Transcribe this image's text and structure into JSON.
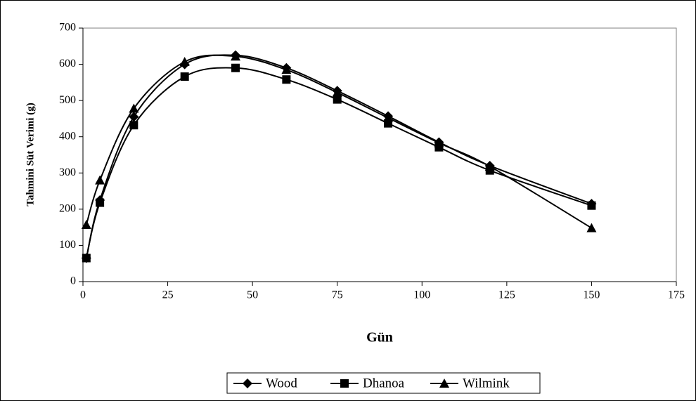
{
  "chart_data": {
    "type": "line",
    "x_label": "Gün",
    "y_label": "Tahmini Süt Verimi (g)",
    "x": [
      1,
      5,
      15,
      30,
      45,
      60,
      75,
      90,
      105,
      120,
      150
    ],
    "series": [
      {
        "name": "Wood",
        "color": "#000000",
        "marker": "diamond",
        "values": [
          65,
          225,
          455,
          600,
          625,
          590,
          527,
          457,
          385,
          320,
          215
        ]
      },
      {
        "name": "Dhanoa",
        "color": "#000000",
        "marker": "square",
        "values": [
          65,
          218,
          432,
          566,
          590,
          558,
          503,
          437,
          371,
          307,
          210
        ]
      },
      {
        "name": "Wilmink",
        "color": "#000000",
        "marker": "triangle",
        "values": [
          157,
          280,
          478,
          607,
          622,
          585,
          522,
          452,
          383,
          318,
          148
        ]
      }
    ],
    "xlim": [
      0,
      175
    ],
    "xticks": [
      0,
      25,
      50,
      75,
      100,
      125,
      150,
      175
    ],
    "ylim": [
      0,
      700
    ],
    "yticks": [
      0,
      100,
      200,
      300,
      400,
      500,
      600,
      700
    ],
    "legend": "bottom",
    "smooth": true
  }
}
